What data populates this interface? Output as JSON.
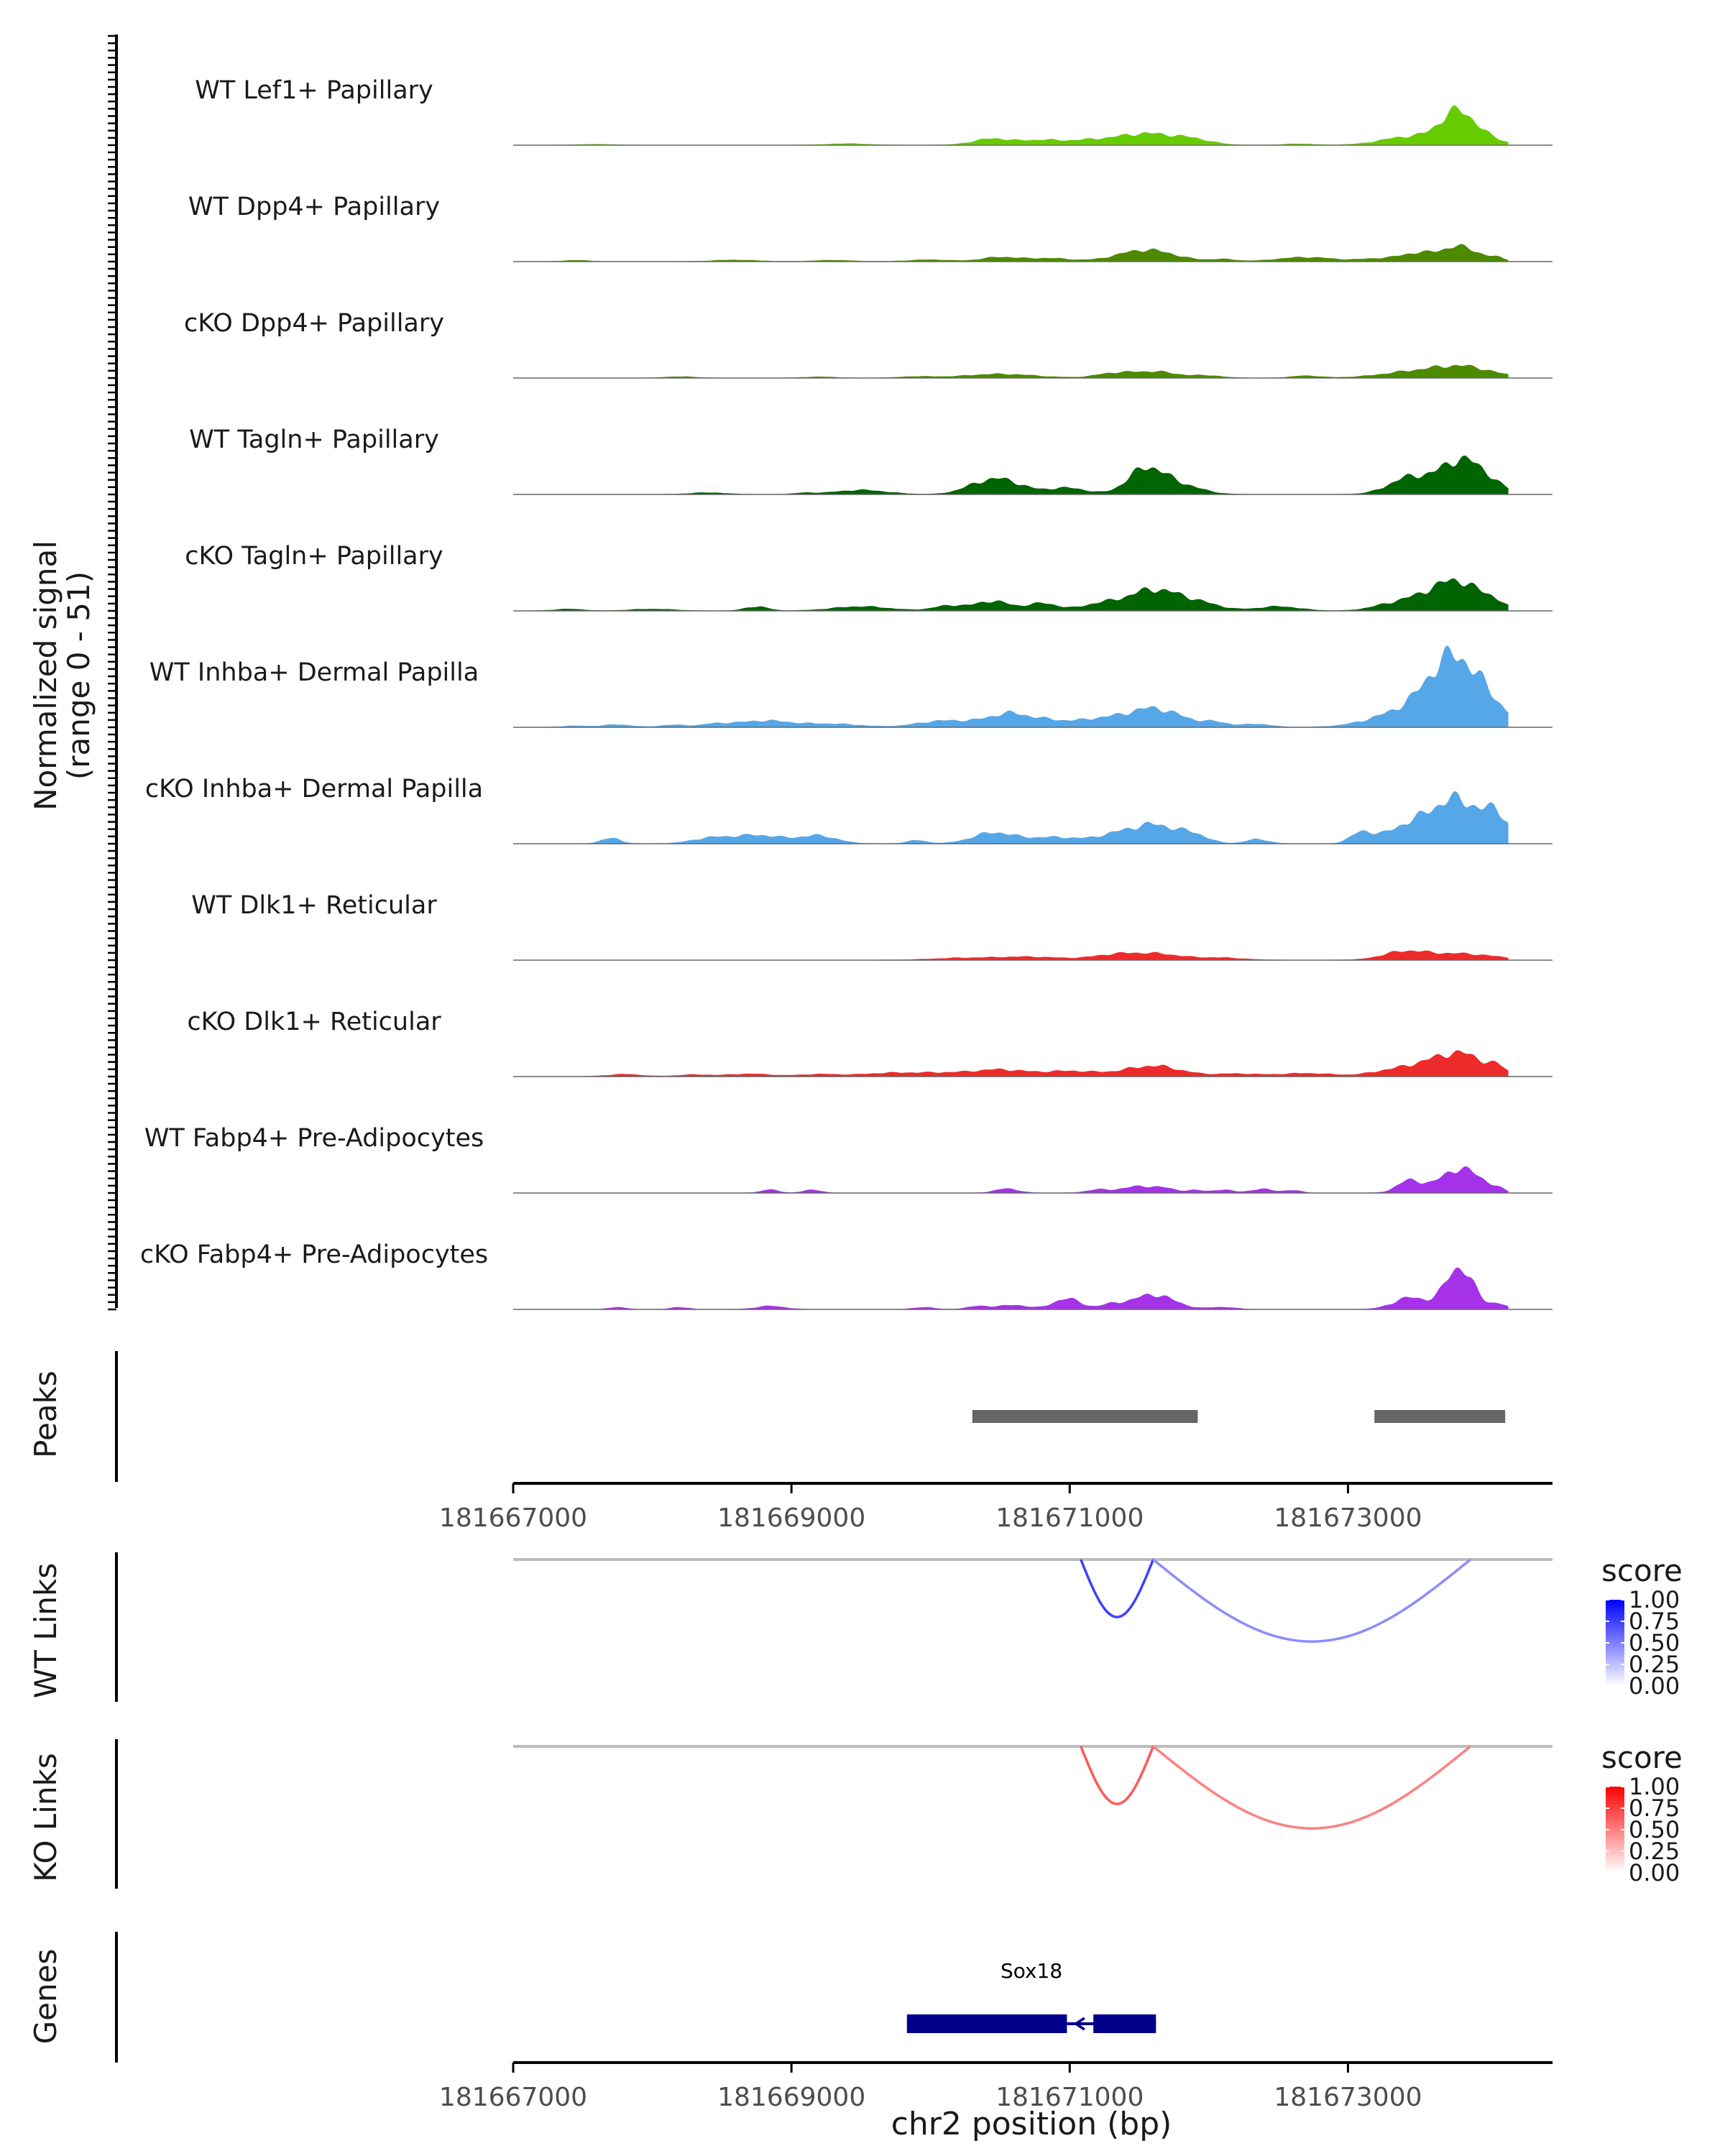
{
  "chart_data": {
    "type": "area",
    "title": "",
    "xlabel": "chr2 position (bp)",
    "xlim": [
      181667000,
      181674470
    ],
    "x_ticks": [
      181667000,
      181669000,
      181671000,
      181673000
    ],
    "x_tick_labels": [
      "181667000",
      "181669000",
      "181671000",
      "181673000"
    ],
    "coverage": {
      "ylabel_line1": "Normalized signal",
      "ylabel_line2": "(range 0 - 51)",
      "y_max": 51,
      "tracks": [
        {
          "label": "WT Lef1+ Papillary",
          "color": "#66cc00",
          "peaks": [
            [
              181667600,
              0.4,
              110
            ],
            [
              181669400,
              0.7,
              140
            ],
            [
              181670450,
              3.0,
              140
            ],
            [
              181670800,
              2.2,
              130
            ],
            [
              181671100,
              1.5,
              140
            ],
            [
              181671550,
              5.5,
              240
            ],
            [
              181671900,
              1.5,
              120
            ],
            [
              181672650,
              0.6,
              100
            ],
            [
              181673450,
              4.0,
              200
            ],
            [
              181673780,
              12.0,
              120
            ],
            [
              181673900,
              4.5,
              160
            ]
          ]
        },
        {
          "label": "WT Dpp4+ Papillary",
          "color": "#4e8a00",
          "peaks": [
            [
              181667450,
              0.6,
              80
            ],
            [
              181668600,
              0.7,
              150
            ],
            [
              181669300,
              0.6,
              130
            ],
            [
              181670000,
              0.8,
              150
            ],
            [
              181670500,
              2.0,
              130
            ],
            [
              181670850,
              1.5,
              150
            ],
            [
              181671550,
              5.5,
              200
            ],
            [
              181672100,
              1.0,
              90
            ],
            [
              181672700,
              2.0,
              200
            ],
            [
              181673200,
              1.2,
              120
            ],
            [
              181673480,
              3.5,
              120
            ],
            [
              181673800,
              7.0,
              140
            ],
            [
              181674080,
              1.2,
              50
            ]
          ]
        },
        {
          "label": "cKO Dpp4+ Papillary",
          "color": "#4e8a00",
          "peaks": [
            [
              181668200,
              0.6,
              100
            ],
            [
              181669200,
              0.5,
              100
            ],
            [
              181669900,
              0.6,
              120
            ],
            [
              181670500,
              1.8,
              250
            ],
            [
              181671300,
              1.8,
              120
            ],
            [
              181671600,
              3.0,
              170
            ],
            [
              181672000,
              1.0,
              100
            ],
            [
              181672700,
              1.0,
              100
            ],
            [
              181673500,
              3.0,
              250
            ],
            [
              181673850,
              4.5,
              200
            ]
          ]
        },
        {
          "label": "WT Tagln+ Papillary",
          "color": "#006400",
          "peaks": [
            [
              181668400,
              0.8,
              120
            ],
            [
              181669100,
              0.6,
              80
            ],
            [
              181669500,
              2.0,
              180
            ],
            [
              181670300,
              1.5,
              120
            ],
            [
              181670500,
              7.0,
              160
            ],
            [
              181670980,
              3.0,
              140
            ],
            [
              181671550,
              12.0,
              130
            ],
            [
              181671800,
              4.0,
              150
            ],
            [
              181673450,
              8.0,
              150
            ],
            [
              181673800,
              15.0,
              140
            ],
            [
              181674000,
              5.0,
              120
            ]
          ]
        },
        {
          "label": "cKO Tagln+ Papillary",
          "color": "#006400",
          "peaks": [
            [
              181667400,
              0.8,
              100
            ],
            [
              181668000,
              0.8,
              150
            ],
            [
              181668750,
              2.0,
              80
            ],
            [
              181669500,
              2.0,
              200
            ],
            [
              181670150,
              2.5,
              120
            ],
            [
              181670450,
              4.5,
              110
            ],
            [
              181670800,
              3.5,
              120
            ],
            [
              181671200,
              2.5,
              120
            ],
            [
              181671600,
              10.0,
              200
            ],
            [
              181671950,
              2.5,
              150
            ],
            [
              181672500,
              2.0,
              150
            ],
            [
              181673300,
              2.5,
              140
            ],
            [
              181673550,
              5.5,
              150
            ],
            [
              181673800,
              13.0,
              150
            ],
            [
              181674050,
              3.5,
              80
            ]
          ]
        },
        {
          "label": "WT Inhba+ Dermal Papilla",
          "color": "#56a7e8",
          "peaks": [
            [
              181667450,
              0.6,
              100
            ],
            [
              181667750,
              1.2,
              100
            ],
            [
              181668150,
              1.0,
              100
            ],
            [
              181668450,
              1.2,
              100
            ],
            [
              181668800,
              3.0,
              200
            ],
            [
              181669300,
              1.5,
              200
            ],
            [
              181670000,
              1.5,
              150
            ],
            [
              181670250,
              2.5,
              200
            ],
            [
              181670550,
              4.5,
              130
            ],
            [
              181670800,
              3.5,
              180
            ],
            [
              181671200,
              3.0,
              150
            ],
            [
              181671600,
              9.0,
              200
            ],
            [
              181672050,
              2.0,
              100
            ],
            [
              181672350,
              1.5,
              100
            ],
            [
              181673450,
              8.0,
              250
            ],
            [
              181673750,
              28.0,
              170
            ],
            [
              181674000,
              9.0,
              150
            ]
          ]
        },
        {
          "label": "cKO Inhba+ Dermal Papilla",
          "color": "#56a7e8",
          "peaks": [
            [
              181667700,
              2.5,
              70
            ],
            [
              181668400,
              2.0,
              130
            ],
            [
              181668750,
              4.0,
              200
            ],
            [
              181669200,
              3.5,
              130
            ],
            [
              181669900,
              1.5,
              70
            ],
            [
              181670450,
              5.0,
              150
            ],
            [
              181670900,
              3.0,
              200
            ],
            [
              181671300,
              2.5,
              120
            ],
            [
              181671600,
              9.0,
              180
            ],
            [
              181671900,
              3.0,
              100
            ],
            [
              181672350,
              2.0,
              80
            ],
            [
              181673100,
              5.0,
              80
            ],
            [
              181673400,
              6.0,
              150
            ],
            [
              181673780,
              21.0,
              200
            ],
            [
              181674080,
              9.0,
              80
            ]
          ]
        },
        {
          "label": "WT Dlk1+ Reticular",
          "color": "#ee2b2b",
          "peaks": [
            [
              181670200,
              0.8,
              200
            ],
            [
              181670700,
              1.5,
              250
            ],
            [
              181671300,
              1.8,
              150
            ],
            [
              181671600,
              3.0,
              200
            ],
            [
              181672100,
              1.0,
              150
            ],
            [
              181673400,
              3.5,
              150
            ],
            [
              181673800,
              3.0,
              250
            ]
          ]
        },
        {
          "label": "cKO Dlk1+ Reticular",
          "color": "#ee2b2b",
          "peaks": [
            [
              181667800,
              1.0,
              120
            ],
            [
              181668300,
              0.8,
              120
            ],
            [
              181668700,
              1.2,
              150
            ],
            [
              181669200,
              1.0,
              150
            ],
            [
              181669700,
              1.5,
              200
            ],
            [
              181670100,
              1.5,
              200
            ],
            [
              181670500,
              3.0,
              180
            ],
            [
              181671000,
              2.5,
              200
            ],
            [
              181671600,
              5.0,
              200
            ],
            [
              181672200,
              1.2,
              150
            ],
            [
              181672700,
              1.5,
              200
            ],
            [
              181673300,
              2.5,
              150
            ],
            [
              181673600,
              6.0,
              160
            ],
            [
              181673850,
              9.0,
              150
            ],
            [
              181674080,
              3.0,
              60
            ]
          ]
        },
        {
          "label": "WT Fabp4+ Pre-Adipocytes",
          "color": "#a532e8",
          "peaks": [
            [
              181668850,
              1.5,
              60
            ],
            [
              181669150,
              1.5,
              60
            ],
            [
              181670550,
              2.0,
              80
            ],
            [
              181671200,
              1.5,
              80
            ],
            [
              181671450,
              2.5,
              100
            ],
            [
              181671650,
              2.5,
              100
            ],
            [
              181671900,
              1.2,
              60
            ],
            [
              181672100,
              1.5,
              70
            ],
            [
              181672380,
              1.8,
              80
            ],
            [
              181672600,
              1.2,
              60
            ],
            [
              181673450,
              6.0,
              90
            ],
            [
              181673760,
              10.0,
              110
            ],
            [
              181673930,
              5.5,
              90
            ],
            [
              181674080,
              1.5,
              50
            ]
          ]
        },
        {
          "label": "cKO Fabp4+ Pre-Adipocytes",
          "color": "#a532e8",
          "peaks": [
            [
              181667750,
              1.0,
              60
            ],
            [
              181668200,
              1.0,
              60
            ],
            [
              181668850,
              1.5,
              100
            ],
            [
              181669950,
              1.0,
              70
            ],
            [
              181670350,
              1.5,
              80
            ],
            [
              181670600,
              2.0,
              100
            ],
            [
              181670980,
              5.0,
              100
            ],
            [
              181671300,
              2.0,
              80
            ],
            [
              181671600,
              7.0,
              150
            ],
            [
              181672100,
              1.0,
              90
            ],
            [
              181673450,
              5.5,
              120
            ],
            [
              181673800,
              20.0,
              100
            ],
            [
              181674080,
              2.5,
              60
            ]
          ]
        }
      ]
    },
    "peaks_track": {
      "label": "Peaks",
      "color": "#666666",
      "regions": [
        [
          181670300,
          181671920
        ],
        [
          181673190,
          181674130
        ]
      ]
    },
    "links": [
      {
        "label": "WT Links",
        "legend_title": "score",
        "low_color": "#ffffff",
        "high_color": "#0000ff",
        "arcs": [
          {
            "start": 181671080,
            "end": 181671600,
            "score": 0.6
          },
          {
            "start": 181671600,
            "end": 181673880,
            "score": 0.3
          }
        ]
      },
      {
        "label": "KO Links",
        "legend_title": "score",
        "low_color": "#ffffff",
        "high_color": "#ff0000",
        "arcs": [
          {
            "start": 181671080,
            "end": 181671600,
            "score": 0.5
          },
          {
            "start": 181671600,
            "end": 181673880,
            "score": 0.35
          }
        ]
      }
    ],
    "legend_ticks": [
      "1.00",
      "0.75",
      "0.50",
      "0.25",
      "0.00"
    ],
    "genes_track": {
      "label": "Genes",
      "color": "#00008b",
      "genes": [
        {
          "name": "Sox18",
          "start": 181669830,
          "end": 181671620,
          "strand": "-",
          "exons": [
            [
              181669830,
              181670980
            ],
            [
              181671170,
              181671620
            ]
          ]
        }
      ]
    }
  }
}
